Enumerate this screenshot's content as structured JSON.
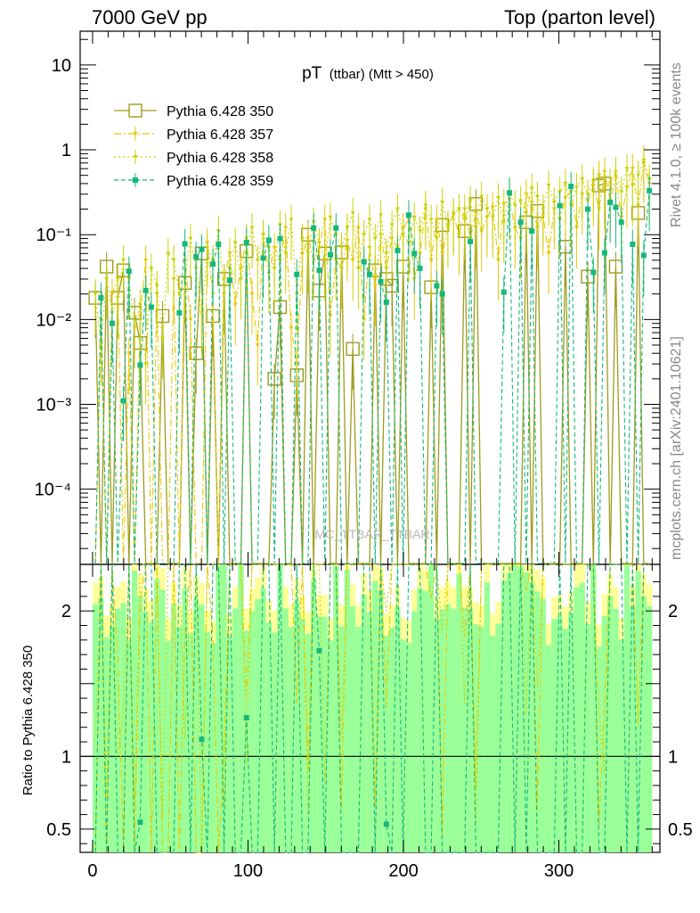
{
  "header": {
    "left": "7000 GeV pp",
    "right": "Top (parton level)"
  },
  "side_text": {
    "rivet": "Rivet 4.1.0, ≥ 100k events",
    "mcplots": "mcplots.cern.ch [arXiv:2401.10621]"
  },
  "watermark": "MC_TTBAR_TTBAR",
  "chart_data": {
    "type": "line",
    "title_main": "pT",
    "title_sub": "(ttbar) (Mtt > 450)",
    "xlabel": "",
    "ylabel": "",
    "ratio_ylabel": "Ratio to Pythia 6.428 350",
    "xlim": [
      -8,
      365
    ],
    "ylim": [
      1.3e-05,
      25
    ],
    "yscale": "log",
    "ratio_ylim": [
      0.34,
      2.32
    ],
    "x_ticks": [
      0,
      100,
      200,
      300
    ],
    "y_tick_labels": [
      "10",
      "1",
      "10⁻¹",
      "10⁻²",
      "10⁻³",
      "10⁻⁴"
    ],
    "ratio_tick_labels": [
      "2",
      "1",
      "0.5"
    ],
    "legend": [
      {
        "name": "Pythia 6.428 350",
        "color": "#9c9c1f",
        "style": "solid-square"
      },
      {
        "name": "Pythia 6.428 357",
        "color": "#e8c800",
        "style": "dashdot-triangle"
      },
      {
        "name": "Pythia 6.428 358",
        "color": "#c8d400",
        "style": "dotted-triangle"
      },
      {
        "name": "Pythia 6.428 359",
        "color": "#16b87a",
        "style": "dashed-square"
      }
    ],
    "bins": {
      "start": 0,
      "width": 3.6,
      "count": 100
    },
    "series": [
      {
        "name": "Pythia 6.428 350",
        "values": [
          0.018,
          0,
          0.042,
          0,
          0.018,
          0.038,
          0,
          0.012,
          0.0053,
          0,
          0,
          0,
          0.011,
          0,
          0,
          0,
          0.027,
          0,
          0.004,
          0.06,
          0,
          0.011,
          0,
          0.03,
          0,
          0,
          0,
          0.064,
          0,
          0,
          0,
          0,
          0.002,
          0.014,
          0,
          0,
          0.0022,
          0,
          0.1,
          0,
          0.022,
          0.06,
          0,
          0,
          0.062,
          0,
          0.0045,
          0,
          0,
          0,
          0.038,
          0,
          0.03,
          0.025,
          0,
          0.042,
          0,
          0,
          0,
          0,
          0.024,
          0,
          0.13,
          0,
          0,
          0,
          0.11,
          0,
          0.23,
          0,
          0,
          0,
          0,
          0,
          0,
          0,
          0,
          0.14,
          0,
          0.19,
          0,
          0,
          0,
          0,
          0.072,
          0,
          0,
          0,
          0.032,
          0,
          0.38,
          0.4,
          0,
          0.042,
          0,
          0,
          0,
          0.18,
          0,
          0
        ]
      },
      {
        "name": "Pythia 6.428 357",
        "values": [
          0,
          0.01,
          0,
          0.02,
          0.03,
          0,
          0.004,
          0,
          0.011,
          0.05,
          0,
          0.02,
          0,
          0,
          0.03,
          0,
          0.05,
          0.01,
          0,
          0,
          0.08,
          0.02,
          0,
          0.03,
          0.06,
          0.015,
          0.04,
          0.09,
          0.02,
          0.005,
          0.1,
          0.035,
          0.07,
          0.05,
          0.12,
          0.008,
          0.003,
          0.06,
          0.09,
          0.05,
          0.07,
          0.15,
          0.011,
          0.05,
          0.04,
          0.085,
          0.05,
          0.12,
          0.01,
          0.07,
          0.025,
          0.1,
          0.04,
          0.09,
          0.07,
          0.12,
          0.15,
          0.03,
          0.06,
          0.2,
          0.05,
          0.15,
          0.06,
          0.12,
          0.17,
          0.1,
          0.2,
          0.09,
          0.18,
          0.11,
          0.16,
          0.21,
          0.05,
          0.23,
          0.26,
          0.12,
          0.09,
          0.3,
          0.24,
          0.12,
          0.17,
          0.06,
          0.2,
          0.15,
          0.27,
          0.32,
          0.12,
          0.3,
          0.25,
          0.38,
          0.2,
          0.55,
          0.25,
          0.48,
          0.16,
          0.36,
          0.6,
          0.22,
          0.7,
          0.4
        ]
      },
      {
        "name": "Pythia 6.428 358",
        "values": [
          0.02,
          0.005,
          0.03,
          0.012,
          0.018,
          0.05,
          0.03,
          0.008,
          0.015,
          0.003,
          0.04,
          0.025,
          0.006,
          0.06,
          0.05,
          0.02,
          0.03,
          0.09,
          0.04,
          0.012,
          0.07,
          0.05,
          0.11,
          0.02,
          0.04,
          0.08,
          0.03,
          0.06,
          0.12,
          0.05,
          0.1,
          0.07,
          0.04,
          0.13,
          0.06,
          0.15,
          0.02,
          0.09,
          0.06,
          0.14,
          0.08,
          0.05,
          0.16,
          0.1,
          0.07,
          0.12,
          0.18,
          0.04,
          0.1,
          0.15,
          0.09,
          0.17,
          0.06,
          0.13,
          0.2,
          0.1,
          0.08,
          0.16,
          0.11,
          0.22,
          0.15,
          0.09,
          0.24,
          0.13,
          0.18,
          0.2,
          0.15,
          0.25,
          0.12,
          0.28,
          0.2,
          0.16,
          0.27,
          0.14,
          0.32,
          0.22,
          0.25,
          0.18,
          0.35,
          0.28,
          0.2,
          0.38,
          0.24,
          0.32,
          0.4,
          0.22,
          0.36,
          0.45,
          0.3,
          0.42,
          0.5,
          0.35,
          0.4,
          0.55,
          0.32,
          0.6,
          0.38,
          0.5,
          0.75,
          0.45
        ]
      },
      {
        "name": "Pythia 6.428 359",
        "values": [
          0,
          0.018,
          0,
          0.009,
          0,
          0.0011,
          0.037,
          0,
          0.0029,
          0.022,
          0.014,
          0,
          0,
          0,
          0,
          0.012,
          0.078,
          0,
          0.055,
          0.067,
          0,
          0.045,
          0.077,
          0,
          0.029,
          0,
          0,
          0.081,
          0,
          0,
          0.053,
          0.086,
          0,
          0.09,
          0,
          0,
          0.034,
          0,
          0,
          0.12,
          0.038,
          0,
          0.058,
          0.12,
          0,
          0,
          0,
          0,
          0.048,
          0.034,
          0,
          0.028,
          0.016,
          0,
          0.065,
          0,
          0.17,
          0.06,
          0.04,
          0,
          0,
          0.025,
          0.02,
          0,
          0,
          0,
          0,
          0.083,
          0,
          0,
          0,
          0,
          0,
          0.021,
          0.31,
          0,
          0.14,
          0,
          0.11,
          0,
          0,
          0,
          0,
          0.22,
          0,
          0.37,
          0,
          0,
          0.2,
          0.036,
          0,
          0.061,
          0.24,
          0.21,
          0.14,
          0,
          0.077,
          0,
          0.057,
          0.33
        ]
      }
    ]
  }
}
